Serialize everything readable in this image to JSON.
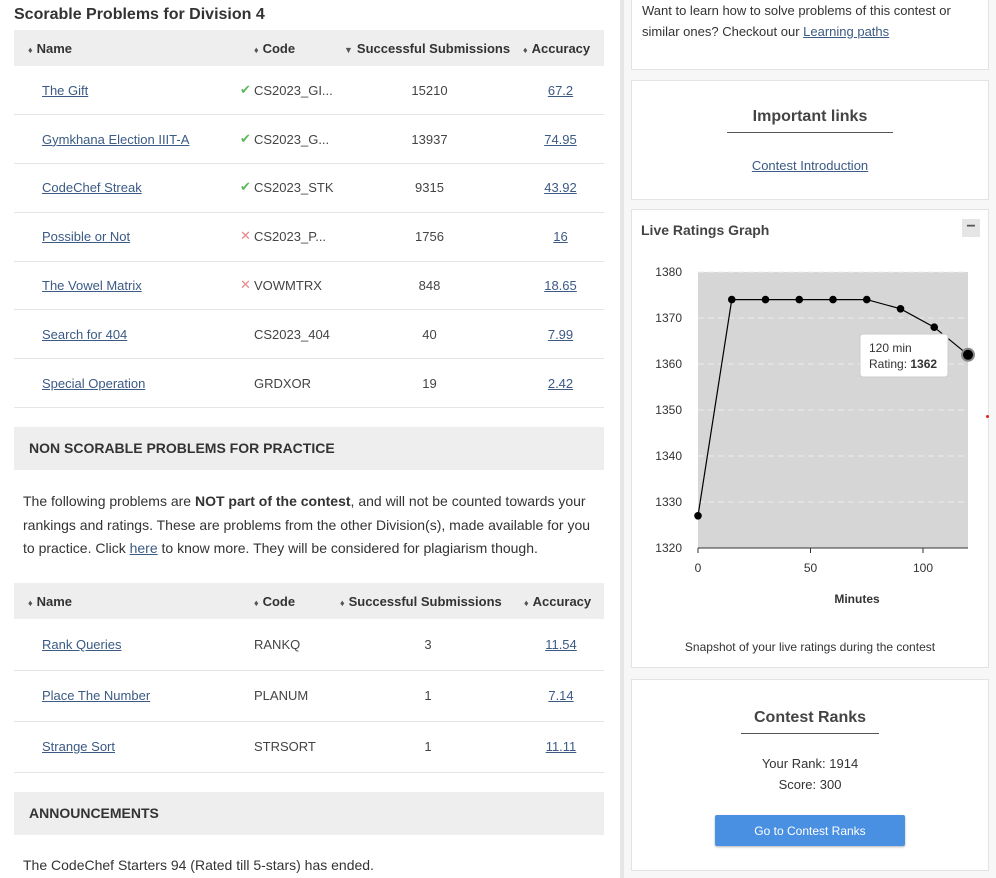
{
  "scorable": {
    "title": "Scorable Problems for Division 4",
    "headers": {
      "name": "Name",
      "code": "Code",
      "subs": "Successful Submissions",
      "accuracy": "Accuracy"
    },
    "rows": [
      {
        "name": "The Gift",
        "status": "✔",
        "code": "CS2023_GI...",
        "subs": "15210",
        "accuracy": "67.2"
      },
      {
        "name": "Gymkhana Election IIIT-A",
        "status": "✔",
        "code": "CS2023_G...",
        "subs": "13937",
        "accuracy": "74.95"
      },
      {
        "name": "CodeChef Streak",
        "status": "✔",
        "code": "CS2023_STK",
        "subs": "9315",
        "accuracy": "43.92"
      },
      {
        "name": "Possible or Not",
        "status": "✕",
        "code": "CS2023_P...",
        "subs": "1756",
        "accuracy": "16"
      },
      {
        "name": "The Vowel Matrix",
        "status": "✕",
        "code": "VOWMTRX",
        "subs": "848",
        "accuracy": "18.65"
      },
      {
        "name": "Search for 404",
        "status": "",
        "code": "CS2023_404",
        "subs": "40",
        "accuracy": "7.99"
      },
      {
        "name": "Special Operation",
        "status": "",
        "code": "GRDXOR",
        "subs": "19",
        "accuracy": "2.42"
      }
    ]
  },
  "nonscorable": {
    "title": "NON SCORABLE PROBLEMS FOR PRACTICE",
    "text_1": "The following problems are ",
    "text_bold": "NOT part of the contest",
    "text_2": ", and will not be counted towards your rankings and ratings. These are problems from the other Division(s), made available for you to practice. Click ",
    "text_link": "here",
    "text_3": " to know more. They will be considered for plagiarism though.",
    "headers": {
      "name": "Name",
      "code": "Code",
      "subs": "Successful Submissions",
      "accuracy": "Accuracy"
    },
    "rows": [
      {
        "name": "Rank Queries",
        "code": "RANKQ",
        "subs": "3",
        "accuracy": "11.54"
      },
      {
        "name": "Place The Number",
        "code": "PLANUM",
        "subs": "1",
        "accuracy": "7.14"
      },
      {
        "name": "Strange Sort",
        "code": "STRSORT",
        "subs": "1",
        "accuracy": "11.11"
      }
    ]
  },
  "announcements": {
    "title": "ANNOUNCEMENTS",
    "text": "The CodeChef Starters 94 (Rated till 5-stars) has ended."
  },
  "learn": {
    "text_1": "Want to learn how to solve problems of this contest or similar ones? Checkout our ",
    "link": "Learning paths"
  },
  "important_links": {
    "title": "Important links",
    "link": "Contest Introduction"
  },
  "ratings": {
    "title": "Live Ratings Graph",
    "collapse": "−",
    "caption": "Snapshot of your live ratings during the contest",
    "tooltip_time": "120 min",
    "tooltip_label": "Rating: ",
    "tooltip_value": "1362"
  },
  "chart_data": {
    "type": "line",
    "x": [
      0,
      15,
      30,
      45,
      60,
      75,
      90,
      105,
      120
    ],
    "values": [
      1327,
      1374,
      1374,
      1374,
      1374,
      1374,
      1372,
      1368,
      1362
    ],
    "xlabel": "Minutes",
    "ylabel": "",
    "xlim": [
      0,
      120
    ],
    "ylim": [
      1320,
      1380
    ],
    "xticks": [
      0,
      50,
      100
    ],
    "yticks": [
      1320,
      1330,
      1340,
      1350,
      1360,
      1370,
      1380
    ],
    "grid": true,
    "colors": {
      "plot_bg": "#d6d6d6",
      "line": "#000000",
      "point": "#000000"
    }
  },
  "contest_ranks": {
    "title": "Contest Ranks",
    "rank": "Your Rank: 1914",
    "score": "Score: 300",
    "button": "Go to Contest Ranks"
  }
}
